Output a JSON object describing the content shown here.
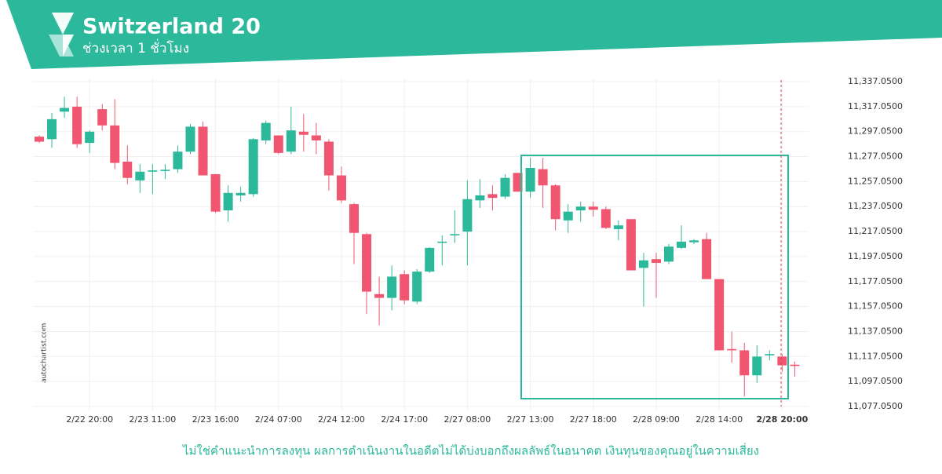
{
  "header": {
    "title": "Switzerland 20",
    "subtitle": "ช่วงเวลา 1 ชั่วโมง"
  },
  "watermark": "autochartist.com",
  "disclaimer": "ไม่ใช่คำแนะนำการลงทุน ผลการดำเนินงานในอดีตไม่ได้บ่งบอกถึงผลลัพธ์ในอนาคต เงินทุนของคุณอยู่ในความเสี่ยง",
  "chart_data": {
    "type": "candlestick",
    "up_color": "#2bb89b",
    "down_color": "#f0566f",
    "grid": true,
    "categories": [
      null,
      null,
      null,
      null,
      "2/22 20:00",
      null,
      null,
      null,
      null,
      "2/23 11:00",
      null,
      null,
      null,
      null,
      "2/23 16:00",
      null,
      null,
      null,
      null,
      "2/24 07:00",
      null,
      null,
      null,
      null,
      "2/24 12:00",
      null,
      null,
      null,
      null,
      "2/24 17:00",
      null,
      null,
      null,
      null,
      "2/27 08:00",
      null,
      null,
      null,
      null,
      "2/27 13:00",
      null,
      null,
      null,
      null,
      "2/27 18:00",
      null,
      null,
      null,
      null,
      "2/28 09:00",
      null,
      null,
      null,
      null,
      "2/28 14:00",
      null,
      null,
      null,
      null,
      "2/28 20:00",
      null
    ],
    "open": [
      11293,
      11291,
      11313,
      11317,
      11288,
      11315,
      11302,
      11273,
      11258,
      11265,
      11265.5,
      11267,
      11281,
      11301,
      11263,
      11234,
      11246,
      11247,
      11290,
      11294,
      11281,
      11297,
      11294,
      11289,
      11262,
      11239,
      11215,
      11167,
      11164,
      11183,
      11161,
      11185,
      11208,
      11214,
      11217,
      11242,
      11247,
      11245,
      11264,
      11249,
      11267,
      11254,
      11226,
      11234,
      11237,
      11235,
      11219,
      11227,
      11188,
      11195,
      11193,
      11204,
      11208.5,
      11211,
      11179,
      11123,
      11122,
      11102,
      11118,
      11117,
      11110.5
    ],
    "high": [
      11294,
      11312,
      11325,
      11325,
      11298,
      11319,
      11323,
      11286,
      11271,
      11271,
      11271,
      11286,
      11303,
      11305,
      11263,
      11254,
      11253,
      11292,
      11306,
      11294,
      11317,
      11311,
      11304,
      11291,
      11269,
      11240,
      11216,
      11181,
      11190,
      11186,
      11187,
      11204.5,
      11214,
      11234,
      11258,
      11259,
      11254,
      11263,
      11264,
      11276,
      11276,
      11255,
      11239,
      11241,
      11241,
      11237,
      11226,
      11227,
      11200,
      11200,
      11207,
      11222,
      11211,
      11216,
      11179,
      11137,
      11128,
      11126,
      11122,
      11119,
      11113
    ],
    "low": [
      11288,
      11284,
      11308,
      11284,
      11280,
      11298,
      11267,
      11255,
      11248,
      11247,
      11259,
      11264,
      11279,
      11262,
      11232,
      11225,
      11241,
      11245,
      11287,
      11279,
      11279,
      11281,
      11279,
      11250,
      11240,
      11191,
      11151,
      11142,
      11154,
      11159,
      11159,
      11184,
      11190,
      11208,
      11190,
      11236,
      11234,
      11243,
      11249,
      11244,
      11236,
      11218,
      11216,
      11225,
      11229,
      11219,
      11210,
      11186,
      11157,
      11164,
      11191,
      11203,
      11207,
      11179,
      11122,
      11112,
      11085,
      11096,
      11114,
      11105,
      11101
    ],
    "close": [
      11289,
      11307,
      11316,
      11287,
      11297,
      11302,
      11272,
      11260,
      11265,
      11266,
      11266.5,
      11281,
      11301,
      11262,
      11233,
      11248,
      11248,
      11291,
      11304,
      11280,
      11298,
      11294.5,
      11290,
      11262,
      11242,
      11216,
      11169,
      11164,
      11181,
      11162,
      11185,
      11204,
      11209,
      11215,
      11243,
      11246,
      11244,
      11260,
      11249,
      11268,
      11254,
      11227,
      11233,
      11237,
      11234.5,
      11220,
      11222,
      11186,
      11194,
      11192,
      11205,
      11209,
      11210,
      11179,
      11122,
      11122,
      11102,
      11117,
      11119,
      11110,
      11109.5
    ],
    "ylim": [
      11077.05,
      11337.05
    ],
    "yticks": [
      {
        "value": 11077.05,
        "label": "11,077.0500"
      },
      {
        "value": 11097.05,
        "label": "11,097.0500"
      },
      {
        "value": 11117.05,
        "label": "11,117.0500"
      },
      {
        "value": 11137.05,
        "label": "11,137.0500"
      },
      {
        "value": 11157.05,
        "label": "11,157.0500"
      },
      {
        "value": 11177.05,
        "label": "11,177.0500"
      },
      {
        "value": 11197.05,
        "label": "11,197.0500"
      },
      {
        "value": 11217.05,
        "label": "11,217.0500"
      },
      {
        "value": 11237.05,
        "label": "11,237.0500"
      },
      {
        "value": 11257.05,
        "label": "11,257.0500"
      },
      {
        "value": 11277.05,
        "label": "11,277.0500"
      },
      {
        "value": 11297.05,
        "label": "11,297.0500"
      },
      {
        "value": 11317.05,
        "label": "11,317.0500"
      },
      {
        "value": 11337.05,
        "label": "11,337.0500"
      }
    ]
  }
}
